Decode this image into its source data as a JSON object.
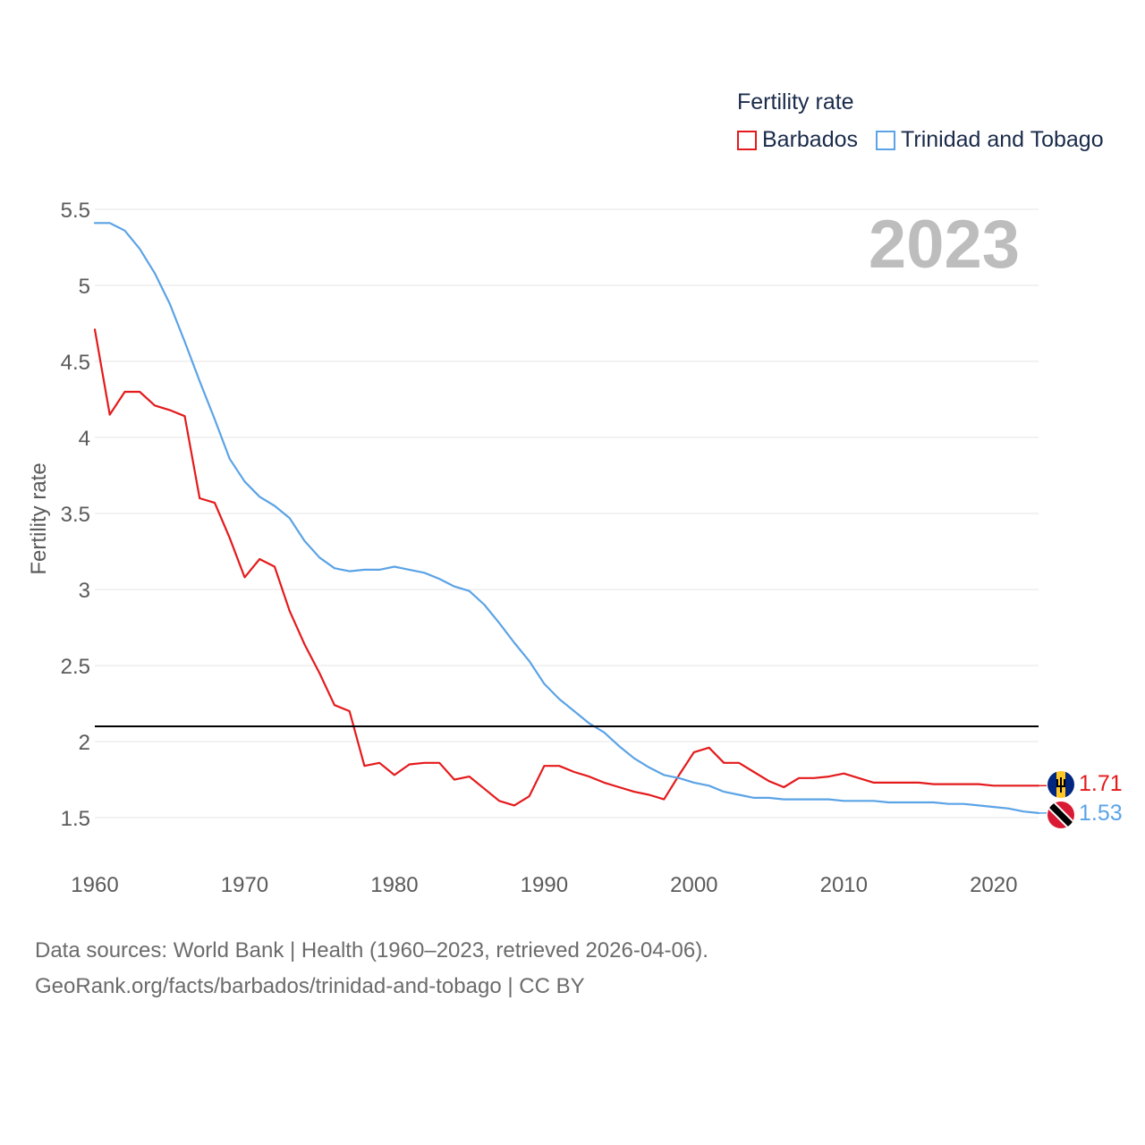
{
  "legend": {
    "title": "Fertility rate",
    "items": [
      {
        "label": "Barbados",
        "color": "#e41a1c"
      },
      {
        "label": "Trinidad and Tobago",
        "color": "#5ba3e6"
      }
    ]
  },
  "year_label": "2023",
  "footer": {
    "line1": "Data sources: World Bank | Health (1960–2023, retrieved 2026-04-06).",
    "line2": "GeoRank.org/facts/barbados/trinidad-and-tobago | CC BY"
  },
  "chart_data": {
    "type": "line",
    "title": "Fertility rate",
    "xlabel": "",
    "ylabel": "Fertility rate",
    "xlim": [
      1960,
      2023
    ],
    "ylim": [
      1.5,
      5.5
    ],
    "x_ticks": [
      "1960",
      "1970",
      "1980",
      "1990",
      "2000",
      "2010",
      "2020"
    ],
    "y_ticks": [
      "1.5",
      "2",
      "2.5",
      "3",
      "3.5",
      "4",
      "4.5",
      "5",
      "5.5"
    ],
    "reference_line": 2.1,
    "x": [
      1960,
      1961,
      1962,
      1963,
      1964,
      1965,
      1966,
      1967,
      1968,
      1969,
      1970,
      1971,
      1972,
      1973,
      1974,
      1975,
      1976,
      1977,
      1978,
      1979,
      1980,
      1981,
      1982,
      1983,
      1984,
      1985,
      1986,
      1987,
      1988,
      1989,
      1990,
      1991,
      1992,
      1993,
      1994,
      1995,
      1996,
      1997,
      1998,
      1999,
      2000,
      2001,
      2002,
      2003,
      2004,
      2005,
      2006,
      2007,
      2008,
      2009,
      2010,
      2011,
      2012,
      2013,
      2014,
      2015,
      2016,
      2017,
      2018,
      2019,
      2020,
      2021,
      2022,
      2023
    ],
    "series": [
      {
        "name": "Barbados",
        "color": "#e41a1c",
        "end_label": "1.71",
        "values": [
          4.71,
          4.15,
          4.3,
          4.3,
          4.21,
          4.18,
          4.14,
          3.6,
          3.57,
          3.34,
          3.08,
          3.2,
          3.15,
          2.86,
          2.64,
          2.45,
          2.24,
          2.2,
          1.84,
          1.86,
          1.78,
          1.85,
          1.86,
          1.86,
          1.75,
          1.77,
          1.69,
          1.61,
          1.58,
          1.64,
          1.84,
          1.84,
          1.8,
          1.77,
          1.73,
          1.7,
          1.67,
          1.65,
          1.62,
          1.78,
          1.93,
          1.96,
          1.86,
          1.86,
          1.8,
          1.74,
          1.7,
          1.76,
          1.76,
          1.77,
          1.79,
          1.76,
          1.73,
          1.73,
          1.73,
          1.73,
          1.72,
          1.72,
          1.72,
          1.72,
          1.71,
          1.71,
          1.71,
          1.71
        ]
      },
      {
        "name": "Trinidad and Tobago",
        "color": "#5ba3e6",
        "end_label": "1.53",
        "values": [
          5.41,
          5.41,
          5.36,
          5.24,
          5.08,
          4.88,
          4.63,
          4.37,
          4.12,
          3.86,
          3.71,
          3.61,
          3.55,
          3.47,
          3.32,
          3.21,
          3.14,
          3.12,
          3.13,
          3.13,
          3.15,
          3.13,
          3.11,
          3.07,
          3.02,
          2.99,
          2.9,
          2.78,
          2.65,
          2.53,
          2.38,
          2.28,
          2.2,
          2.12,
          2.06,
          1.97,
          1.89,
          1.83,
          1.78,
          1.76,
          1.73,
          1.71,
          1.67,
          1.65,
          1.63,
          1.63,
          1.62,
          1.62,
          1.62,
          1.62,
          1.61,
          1.61,
          1.61,
          1.6,
          1.6,
          1.6,
          1.6,
          1.59,
          1.59,
          1.58,
          1.57,
          1.56,
          1.54,
          1.53
        ]
      }
    ]
  }
}
